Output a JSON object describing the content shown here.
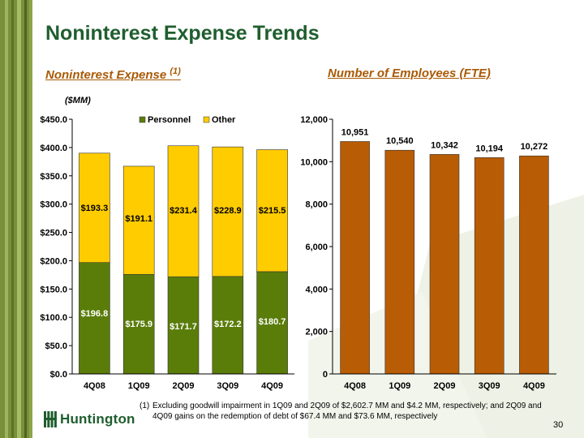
{
  "slide": {
    "title": "Noninterest Expense Trends",
    "page_number": "30",
    "brand": "Huntington",
    "footnote_marker": "(1)",
    "footnote_text": "Excluding goodwill impairment in 1Q09 and 2Q09 of $2,602.7 MM and $4.2 MM, respectively; and 2Q09 and 4Q09 gains on the redemption of debt of $67.4 MM and  $73.6 MM, respectively"
  },
  "left_panel": {
    "subtitle": "Noninterest Expense",
    "subtitle_note": "(1)",
    "units": "($MM)"
  },
  "right_panel": {
    "subtitle": "Number of Employees (FTE)"
  },
  "colors": {
    "personnel": "#5a7d0a",
    "other": "#ffcc00",
    "employees": "#b85c05",
    "title": "#1f5e2e",
    "subtitle": "#a95a06"
  },
  "chart_data": [
    {
      "type": "bar",
      "stacked": true,
      "categories": [
        "4Q08",
        "1Q09",
        "2Q09",
        "3Q09",
        "4Q09"
      ],
      "series": [
        {
          "name": "Personnel",
          "values": [
            196.8,
            175.9,
            171.7,
            172.2,
            180.7
          ],
          "labels": [
            "$196.8",
            "$175.9",
            "$171.7",
            "$172.2",
            "$180.7"
          ]
        },
        {
          "name": "Other",
          "values": [
            193.3,
            191.1,
            231.4,
            228.9,
            215.5
          ],
          "labels": [
            "$193.3",
            "$191.1",
            "$231.4",
            "$228.9",
            "$215.5"
          ]
        }
      ],
      "ylim": [
        0,
        450
      ],
      "yticks": [
        "$0.0",
        "$50.0",
        "$100.0",
        "$150.0",
        "$200.0",
        "$250.0",
        "$300.0",
        "$350.0",
        "$400.0",
        "$450.0"
      ],
      "legend": "top",
      "grid": false
    },
    {
      "type": "bar",
      "categories": [
        "4Q08",
        "1Q09",
        "2Q09",
        "3Q09",
        "4Q09"
      ],
      "values": [
        10951,
        10540,
        10342,
        10194,
        10272
      ],
      "labels": [
        "10,951",
        "10,540",
        "10,342",
        "10,194",
        "10,272"
      ],
      "ylim": [
        0,
        12000
      ],
      "yticks": [
        "0",
        "2,000",
        "4,000",
        "6,000",
        "8,000",
        "10,000",
        "12,000"
      ],
      "grid": false
    }
  ]
}
